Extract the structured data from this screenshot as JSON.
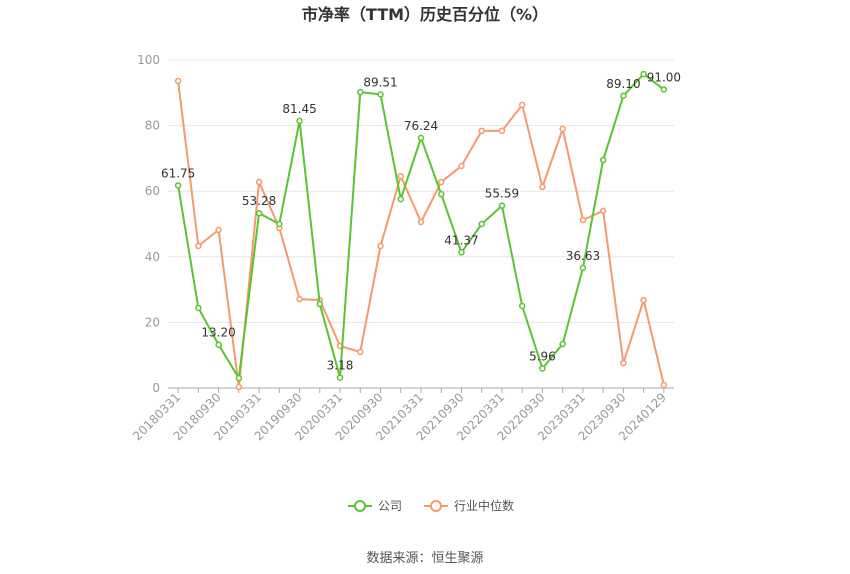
{
  "chart_data": {
    "type": "line",
    "title": "市净率（TTM）历史百分位（%）",
    "source": "数据来源：恒生聚源",
    "categories": [
      "20180331",
      null,
      "20180930",
      null,
      "20190331",
      null,
      "20190930",
      null,
      "20200331",
      null,
      "20200930",
      null,
      "20210331",
      null,
      "20210930",
      null,
      "20220331",
      null,
      "20220930",
      null,
      "20230331",
      null,
      "20230930",
      null,
      "20240129"
    ],
    "series": [
      {
        "name": "公司",
        "color": "#5ac431",
        "values": [
          61.75,
          24.4,
          13.2,
          3.0,
          53.28,
          50.0,
          81.45,
          25.6,
          3.18,
          90.2,
          89.51,
          57.6,
          76.24,
          59.1,
          41.37,
          50.0,
          55.59,
          25.0,
          5.96,
          13.4,
          36.63,
          69.5,
          89.1,
          95.7,
          91.0
        ],
        "value_labels": [
          "61.75",
          null,
          "13.20",
          null,
          "53.28",
          null,
          "81.45",
          null,
          "3.18",
          null,
          "89.51",
          null,
          "76.24",
          null,
          "41.37",
          null,
          "55.59",
          null,
          "5.96",
          null,
          "36.63",
          null,
          "89.10",
          null,
          "91.00"
        ]
      },
      {
        "name": "行业中位数",
        "color": "#f59a6e",
        "values": [
          93.6,
          43.3,
          48.2,
          0.3,
          62.8,
          48.8,
          27.1,
          26.8,
          12.8,
          11.0,
          43.3,
          64.6,
          50.6,
          62.8,
          67.7,
          78.4,
          78.4,
          86.3,
          61.3,
          79.0,
          51.2,
          54.0,
          7.6,
          26.8,
          0.9
        ]
      }
    ],
    "ylim": [
      0,
      100
    ],
    "yticks": [
      0,
      20,
      40,
      60,
      80,
      100
    ],
    "grid": true,
    "legend": "bottom"
  }
}
